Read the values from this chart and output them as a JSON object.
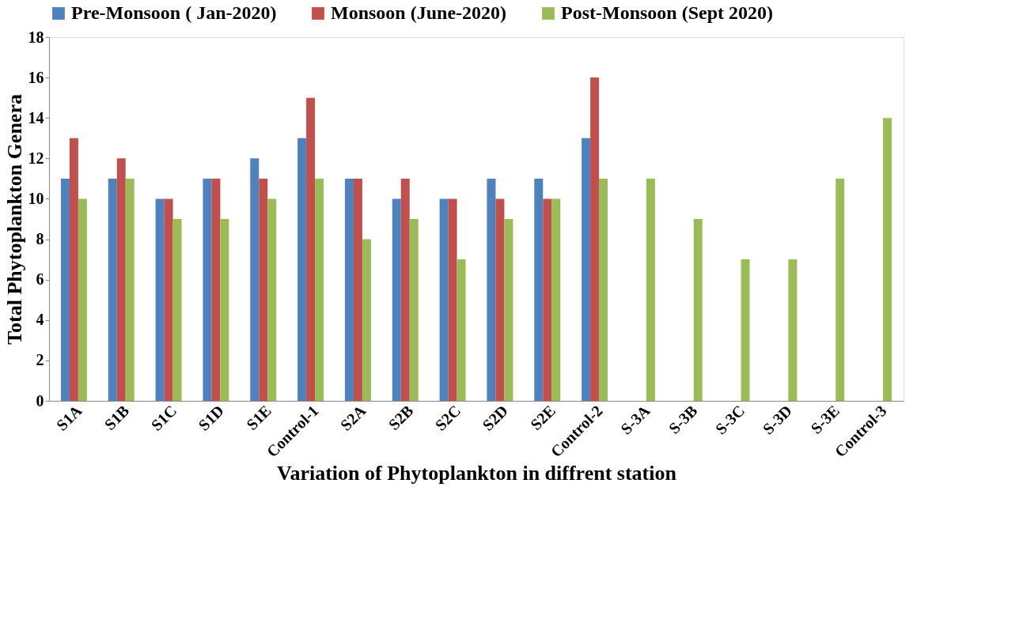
{
  "chart_data": {
    "type": "bar",
    "xlabel": "Variation of Phytoplankton in diffrent station",
    "ylabel": "Total  Phytoplankton Genera",
    "categories": [
      "S1A",
      "S1B",
      "S1C",
      "S1D",
      "S1E",
      "Control-1",
      "S2A",
      "S2B",
      "S2C",
      "S2D",
      "S2E",
      "Control-2",
      "S-3A",
      "S-3B",
      "S-3C",
      "S-3D",
      "S-3E",
      "Control-3"
    ],
    "series": [
      {
        "name": "Pre-Monsoon ( Jan-2020)",
        "color": "#4f81bd",
        "values": [
          11,
          11,
          10,
          11,
          12,
          13,
          11,
          10,
          10,
          11,
          11,
          13,
          null,
          null,
          null,
          null,
          null,
          null
        ]
      },
      {
        "name": "Monsoon (June-2020)",
        "color": "#c0504d",
        "values": [
          13,
          12,
          10,
          11,
          11,
          15,
          11,
          11,
          10,
          10,
          10,
          16,
          null,
          null,
          null,
          null,
          null,
          null
        ]
      },
      {
        "name": "Post-Monsoon (Sept 2020)",
        "color": "#9bbb59",
        "values": [
          10,
          11,
          9,
          9,
          10,
          11,
          8,
          9,
          7,
          9,
          10,
          11,
          11,
          9,
          7,
          7,
          11,
          14
        ]
      }
    ],
    "ylim": [
      0,
      18
    ],
    "yticks": [
      0,
      2,
      4,
      6,
      8,
      10,
      12,
      14,
      16,
      18
    ],
    "grid": false,
    "legend": "top"
  }
}
